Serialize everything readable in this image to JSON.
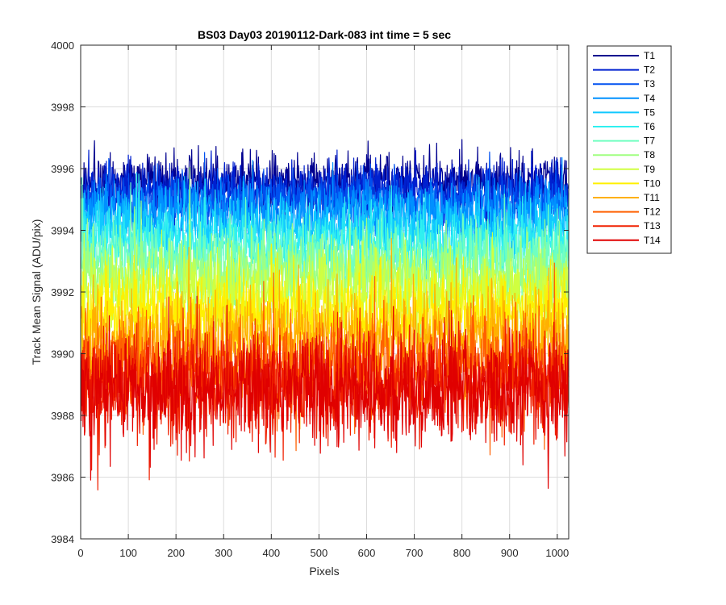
{
  "chart_data": {
    "type": "line",
    "title": "BS03 Day03 20190112-Dark-083 int time = 5 sec",
    "xlabel": "Pixels",
    "ylabel": "Track Mean Signal (ADU/pix)",
    "xlim": [
      0,
      1024
    ],
    "ylim": [
      3984,
      4000
    ],
    "xticks": [
      0,
      100,
      200,
      300,
      400,
      500,
      600,
      700,
      800,
      900,
      1000
    ],
    "yticks": [
      3984,
      3986,
      3988,
      3990,
      3992,
      3994,
      3996,
      3998,
      4000
    ],
    "grid": true,
    "legend_position": "outside-top-right",
    "noise_model": "approximate per-pixel noise around series mean; mean and amplitude estimated from image",
    "series": [
      {
        "name": "T1",
        "color": "#00008F",
        "mean": 3995.6,
        "amplitude": 0.55
      },
      {
        "name": "T2",
        "color": "#0020D0",
        "mean": 3995.3,
        "amplitude": 0.6
      },
      {
        "name": "T3",
        "color": "#0050F0",
        "mean": 3995.0,
        "amplitude": 0.6
      },
      {
        "name": "T4",
        "color": "#0090FF",
        "mean": 3994.6,
        "amplitude": 0.65
      },
      {
        "name": "T5",
        "color": "#10C8FF",
        "mean": 3994.1,
        "amplitude": 0.7
      },
      {
        "name": "T6",
        "color": "#30F0F0",
        "mean": 3993.6,
        "amplitude": 0.75
      },
      {
        "name": "T7",
        "color": "#70FFC0",
        "mean": 3993.1,
        "amplitude": 0.8
      },
      {
        "name": "T8",
        "color": "#A0FF80",
        "mean": 3992.6,
        "amplitude": 0.85
      },
      {
        "name": "T9",
        "color": "#D0FF40",
        "mean": 3992.0,
        "amplitude": 0.9
      },
      {
        "name": "T10",
        "color": "#FFF000",
        "mean": 3991.3,
        "amplitude": 0.95
      },
      {
        "name": "T11",
        "color": "#FFB000",
        "mean": 3990.5,
        "amplitude": 1.0
      },
      {
        "name": "T12",
        "color": "#FF6000",
        "mean": 3989.6,
        "amplitude": 1.05
      },
      {
        "name": "T13",
        "color": "#F02000",
        "mean": 3989.0,
        "amplitude": 1.1
      },
      {
        "name": "T14",
        "color": "#E00000",
        "mean": 3988.8,
        "amplitude": 1.15
      }
    ]
  }
}
